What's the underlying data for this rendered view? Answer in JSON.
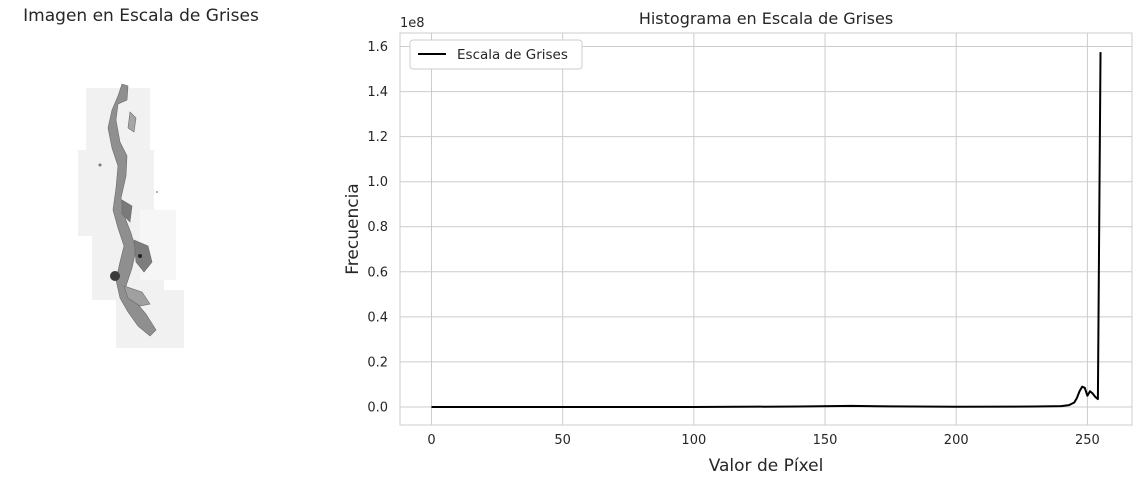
{
  "left_panel": {
    "title": "Imagen en Escala de Grises",
    "image": "grayscale-tissue-slide"
  },
  "chart_data": {
    "type": "line",
    "title": "Histograma en Escala de Grises",
    "xlabel": "Valor de Píxel",
    "ylabel": "Frecuencia",
    "y_scale_label": "1e8",
    "xlim": [
      -12,
      267
    ],
    "ylim": [
      -0.08,
      1.66
    ],
    "x_ticks": [
      0,
      50,
      100,
      150,
      200,
      250
    ],
    "y_ticks": [
      0.0,
      0.2,
      0.4,
      0.6,
      0.8,
      1.0,
      1.2,
      1.4,
      1.6
    ],
    "y_tick_labels": [
      "0.0",
      "0.2",
      "0.4",
      "0.6",
      "0.8",
      "1.0",
      "1.2",
      "1.4",
      "1.6"
    ],
    "grid": true,
    "legend": "top-left",
    "series": [
      {
        "name": "Escala de Grises",
        "color": "#000000",
        "x": [
          0,
          50,
          100,
          140,
          160,
          170,
          200,
          230,
          240,
          243,
          245,
          246,
          247,
          248,
          249,
          250,
          251,
          252,
          253,
          254,
          255
        ],
        "y": [
          0.0,
          0.0,
          0.0,
          0.002,
          0.005,
          0.003,
          0.001,
          0.002,
          0.004,
          0.008,
          0.02,
          0.04,
          0.07,
          0.09,
          0.085,
          0.05,
          0.07,
          0.06,
          0.045,
          0.035,
          1.575
        ]
      }
    ]
  }
}
